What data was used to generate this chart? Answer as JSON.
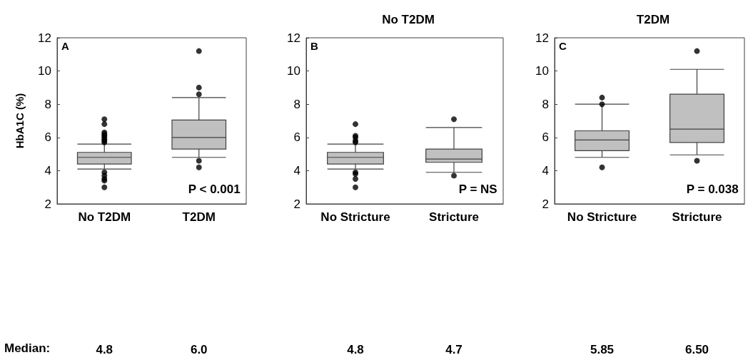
{
  "chart_data": [
    {
      "type": "box",
      "ylabel": "HbA1C (%)",
      "categories": [
        "No T2DM",
        "T2DM"
      ],
      "ylim": [
        2,
        12
      ],
      "yticks": [
        2,
        4,
        6,
        8,
        10,
        12
      ],
      "color": "#c0c0c0",
      "grid": false,
      "boxes": [
        {
          "low": 4.1,
          "q1": 4.4,
          "median": 4.8,
          "q3": 5.1,
          "high": 5.6,
          "outliers": [
            5.7,
            5.8,
            5.9,
            6.0,
            6.1,
            6.2,
            6.3,
            6.8,
            7.1,
            3.9,
            3.7,
            3.5,
            3.4,
            3.0
          ]
        },
        {
          "low": 4.8,
          "q1": 5.3,
          "median": 6.0,
          "q3": 7.05,
          "high": 8.4,
          "outliers": [
            8.6,
            9.0,
            11.2,
            4.6,
            4.2
          ]
        }
      ],
      "annotations": [
        "A",
        "P < 0.001",
        "Median:",
        "4.8",
        "6.0"
      ]
    },
    {
      "type": "box",
      "title": "No T2DM",
      "categories": [
        "No Stricture",
        "Stricture"
      ],
      "ylim": [
        2,
        12
      ],
      "yticks": [
        2,
        4,
        6,
        8,
        10,
        12
      ],
      "color": "#c0c0c0",
      "grid": false,
      "boxes": [
        {
          "low": 4.1,
          "q1": 4.4,
          "median": 4.8,
          "q3": 5.1,
          "high": 5.6,
          "outliers": [
            5.7,
            5.8,
            6.0,
            6.1,
            6.8,
            3.9,
            3.8,
            3.5,
            3.0
          ]
        },
        {
          "low": 3.9,
          "q1": 4.5,
          "median": 4.7,
          "q3": 5.3,
          "high": 6.6,
          "outliers": [
            7.1,
            3.7
          ]
        }
      ],
      "annotations": [
        "B",
        "P = NS",
        "4.8",
        "4.7"
      ]
    },
    {
      "type": "box",
      "title": "T2DM",
      "categories": [
        "No Stricture",
        "Stricture"
      ],
      "ylim": [
        2,
        12
      ],
      "yticks": [
        2,
        4,
        6,
        8,
        10,
        12
      ],
      "color": "#c0c0c0",
      "grid": false,
      "boxes": [
        {
          "low": 4.8,
          "q1": 5.2,
          "median": 5.85,
          "q3": 6.4,
          "high": 8.0,
          "outliers": [
            8.0,
            8.4,
            4.2
          ]
        },
        {
          "low": 4.95,
          "q1": 5.7,
          "median": 6.5,
          "q3": 8.6,
          "high": 10.1,
          "outliers": [
            11.2,
            4.6
          ]
        }
      ],
      "annotations": [
        "C",
        "P = 0.038",
        "5.85",
        "6.50"
      ]
    }
  ]
}
